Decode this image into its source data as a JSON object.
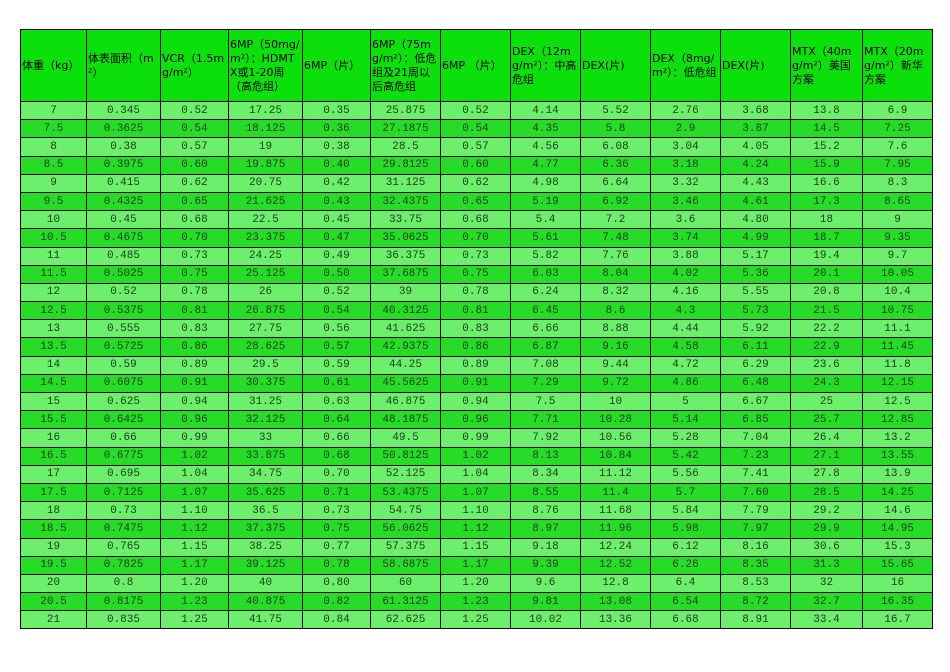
{
  "table": {
    "header": [
      "体重（kg）",
      "体表面积（m²）",
      "VCR（1.5mg/m²）",
      "6MP（50mg/m²）：HDMTX或1-20周（高危组）",
      "6MP（片）",
      "6MP（75mg/m²）：低危组及21周以后高危组",
      "6MP （片）",
      "DEX（12mg/m²）：中高危组",
      "DEX(片)",
      "DEX（8mg/m²）：低危组",
      "DEX(片)",
      "MTX（40mg/m²）美国方案",
      "MTX（20mg/m²）新华方案"
    ],
    "rows": [
      [
        "7",
        "0.345",
        "0.52",
        "17.25",
        "0.35",
        "25.875",
        "0.52",
        "4.14",
        "5.52",
        "2.76",
        "3.68",
        "13.8",
        "6.9"
      ],
      [
        "7.5",
        "0.3625",
        "0.54",
        "18.125",
        "0.36",
        "27.1875",
        "0.54",
        "4.35",
        "5.8",
        "2.9",
        "3.87",
        "14.5",
        "7.25"
      ],
      [
        "8",
        "0.38",
        "0.57",
        "19",
        "0.38",
        "28.5",
        "0.57",
        "4.56",
        "6.08",
        "3.04",
        "4.05",
        "15.2",
        "7.6"
      ],
      [
        "8.5",
        "0.3975",
        "0.60",
        "19.875",
        "0.40",
        "29.8125",
        "0.60",
        "4.77",
        "6.36",
        "3.18",
        "4.24",
        "15.9",
        "7.95"
      ],
      [
        "9",
        "0.415",
        "0.62",
        "20.75",
        "0.42",
        "31.125",
        "0.62",
        "4.98",
        "6.64",
        "3.32",
        "4.43",
        "16.6",
        "8.3"
      ],
      [
        "9.5",
        "0.4325",
        "0.65",
        "21.625",
        "0.43",
        "32.4375",
        "0.65",
        "5.19",
        "6.92",
        "3.46",
        "4.61",
        "17.3",
        "8.65"
      ],
      [
        "10",
        "0.45",
        "0.68",
        "22.5",
        "0.45",
        "33.75",
        "0.68",
        "5.4",
        "7.2",
        "3.6",
        "4.80",
        "18",
        "9"
      ],
      [
        "10.5",
        "0.4675",
        "0.70",
        "23.375",
        "0.47",
        "35.0625",
        "0.70",
        "5.61",
        "7.48",
        "3.74",
        "4.99",
        "18.7",
        "9.35"
      ],
      [
        "11",
        "0.485",
        "0.73",
        "24.25",
        "0.49",
        "36.375",
        "0.73",
        "5.82",
        "7.76",
        "3.88",
        "5.17",
        "19.4",
        "9.7"
      ],
      [
        "11.5",
        "0.5025",
        "0.75",
        "25.125",
        "0.50",
        "37.6875",
        "0.75",
        "6.03",
        "8.04",
        "4.02",
        "5.36",
        "20.1",
        "10.05"
      ],
      [
        "12",
        "0.52",
        "0.78",
        "26",
        "0.52",
        "39",
        "0.78",
        "6.24",
        "8.32",
        "4.16",
        "5.55",
        "20.8",
        "10.4"
      ],
      [
        "12.5",
        "0.5375",
        "0.81",
        "26.875",
        "0.54",
        "40.3125",
        "0.81",
        "6.45",
        "8.6",
        "4.3",
        "5.73",
        "21.5",
        "10.75"
      ],
      [
        "13",
        "0.555",
        "0.83",
        "27.75",
        "0.56",
        "41.625",
        "0.83",
        "6.66",
        "8.88",
        "4.44",
        "5.92",
        "22.2",
        "11.1"
      ],
      [
        "13.5",
        "0.5725",
        "0.86",
        "28.625",
        "0.57",
        "42.9375",
        "0.86",
        "6.87",
        "9.16",
        "4.58",
        "6.11",
        "22.9",
        "11.45"
      ],
      [
        "14",
        "0.59",
        "0.89",
        "29.5",
        "0.59",
        "44.25",
        "0.89",
        "7.08",
        "9.44",
        "4.72",
        "6.29",
        "23.6",
        "11.8"
      ],
      [
        "14.5",
        "0.6075",
        "0.91",
        "30.375",
        "0.61",
        "45.5625",
        "0.91",
        "7.29",
        "9.72",
        "4.86",
        "6.48",
        "24.3",
        "12.15"
      ],
      [
        "15",
        "0.625",
        "0.94",
        "31.25",
        "0.63",
        "46.875",
        "0.94",
        "7.5",
        "10",
        "5",
        "6.67",
        "25",
        "12.5"
      ],
      [
        "15.5",
        "0.6425",
        "0.96",
        "32.125",
        "0.64",
        "48.1875",
        "0.96",
        "7.71",
        "10.28",
        "5.14",
        "6.85",
        "25.7",
        "12.85"
      ],
      [
        "16",
        "0.66",
        "0.99",
        "33",
        "0.66",
        "49.5",
        "0.99",
        "7.92",
        "10.56",
        "5.28",
        "7.04",
        "26.4",
        "13.2"
      ],
      [
        "16.5",
        "0.6775",
        "1.02",
        "33.875",
        "0.68",
        "50.8125",
        "1.02",
        "8.13",
        "10.84",
        "5.42",
        "7.23",
        "27.1",
        "13.55"
      ],
      [
        "17",
        "0.695",
        "1.04",
        "34.75",
        "0.70",
        "52.125",
        "1.04",
        "8.34",
        "11.12",
        "5.56",
        "7.41",
        "27.8",
        "13.9"
      ],
      [
        "17.5",
        "0.7125",
        "1.07",
        "35.625",
        "0.71",
        "53.4375",
        "1.07",
        "8.55",
        "11.4",
        "5.7",
        "7.60",
        "28.5",
        "14.25"
      ],
      [
        "18",
        "0.73",
        "1.10",
        "36.5",
        "0.73",
        "54.75",
        "1.10",
        "8.76",
        "11.68",
        "5.84",
        "7.79",
        "29.2",
        "14.6"
      ],
      [
        "18.5",
        "0.7475",
        "1.12",
        "37.375",
        "0.75",
        "56.0625",
        "1.12",
        "8.97",
        "11.96",
        "5.98",
        "7.97",
        "29.9",
        "14.95"
      ],
      [
        "19",
        "0.765",
        "1.15",
        "38.25",
        "0.77",
        "57.375",
        "1.15",
        "9.18",
        "12.24",
        "6.12",
        "8.16",
        "30.6",
        "15.3"
      ],
      [
        "19.5",
        "0.7825",
        "1.17",
        "39.125",
        "0.78",
        "58.6875",
        "1.17",
        "9.39",
        "12.52",
        "6.26",
        "8.35",
        "31.3",
        "15.65"
      ],
      [
        "20",
        "0.8",
        "1.20",
        "40",
        "0.80",
        "60",
        "1.20",
        "9.6",
        "12.8",
        "6.4",
        "8.53",
        "32",
        "16"
      ],
      [
        "20.5",
        "0.8175",
        "1.23",
        "40.875",
        "0.82",
        "61.3125",
        "1.23",
        "9.81",
        "13.08",
        "6.54",
        "8.72",
        "32.7",
        "16.35"
      ],
      [
        "21",
        "0.835",
        "1.25",
        "41.75",
        "0.84",
        "62.625",
        "1.25",
        "10.02",
        "13.36",
        "6.68",
        "8.91",
        "33.4",
        "16.7"
      ]
    ]
  }
}
